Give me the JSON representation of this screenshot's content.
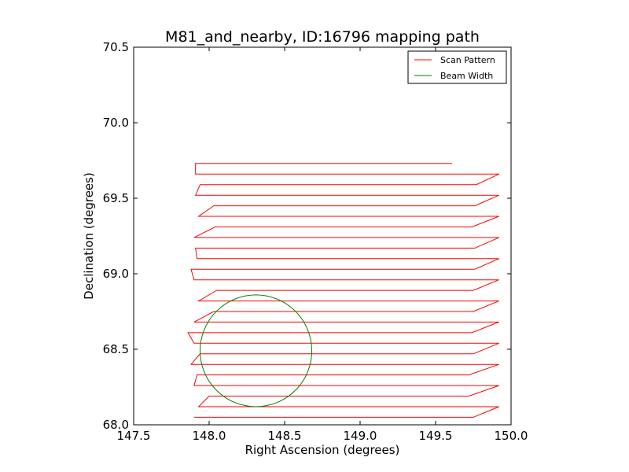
{
  "chart_data": {
    "type": "line",
    "title": "M81_and_nearby, ID:16796 mapping path",
    "xlabel": "Right Ascension (degrees)",
    "ylabel": "Declination (degrees)",
    "xlim": [
      147.5,
      150.0
    ],
    "ylim": [
      68.0,
      70.5
    ],
    "xticks": [
      "147.5",
      "148.0",
      "148.5",
      "149.0",
      "149.5",
      "150.0"
    ],
    "yticks": [
      "68.0",
      "68.5",
      "69.0",
      "69.5",
      "70.0",
      "70.5"
    ],
    "grid": false,
    "legend_position": "top-right",
    "series": [
      {
        "name": "Scan Pattern",
        "color": "#ff0000",
        "x": [
          147.9,
          149.75,
          149.92,
          147.93,
          148.0,
          149.72,
          149.92,
          147.9,
          147.92,
          149.72,
          149.92,
          147.88,
          147.94,
          149.75,
          149.92,
          147.9,
          147.86,
          149.74,
          149.92,
          147.9,
          148.03,
          149.75,
          149.92,
          147.93,
          148.05,
          149.75,
          149.92,
          147.9,
          147.88,
          149.76,
          149.92,
          147.92,
          147.91,
          149.76,
          149.92,
          147.9,
          148.04,
          149.74,
          149.92,
          147.93,
          148.03,
          149.76,
          149.92,
          147.91,
          147.94,
          149.77,
          149.92,
          147.91,
          147.91,
          149.61
        ],
        "y": [
          68.05,
          68.05,
          68.12,
          68.12,
          68.19,
          68.19,
          68.26,
          68.26,
          68.33,
          68.33,
          68.4,
          68.4,
          68.47,
          68.47,
          68.54,
          68.54,
          68.61,
          68.61,
          68.68,
          68.68,
          68.75,
          68.75,
          68.82,
          68.82,
          68.89,
          68.89,
          68.96,
          68.96,
          69.03,
          69.03,
          69.1,
          69.1,
          69.17,
          69.17,
          69.24,
          69.24,
          69.31,
          69.31,
          69.38,
          69.38,
          69.45,
          69.45,
          69.52,
          69.52,
          69.59,
          69.59,
          69.66,
          69.66,
          69.73,
          69.73
        ]
      },
      {
        "name": "Beam Width",
        "color": "#008000",
        "shape": "circle",
        "center": [
          148.31,
          68.49
        ],
        "radius_dec": 0.37,
        "x_stretch": 1.0
      }
    ]
  }
}
